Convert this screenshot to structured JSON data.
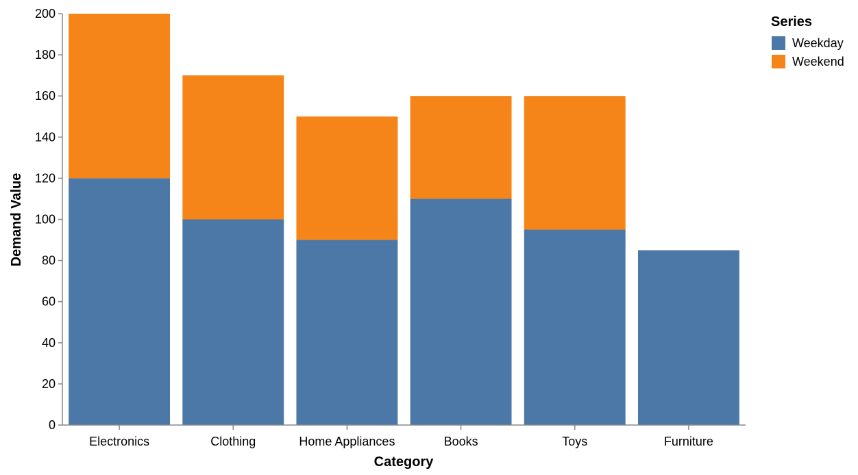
{
  "chart_data": {
    "type": "bar",
    "stacked": true,
    "categories": [
      "Electronics",
      "Clothing",
      "Home Appliances",
      "Books",
      "Toys",
      "Furniture"
    ],
    "series": [
      {
        "name": "Weekday",
        "color": "#4c78a8",
        "values": [
          120,
          100,
          90,
          110,
          95,
          85
        ]
      },
      {
        "name": "Weekend",
        "color": "#f58518",
        "values": [
          80,
          70,
          60,
          50,
          65,
          0
        ]
      }
    ],
    "xlabel": "Category",
    "ylabel": "Demand Value",
    "ylim": [
      0,
      200
    ],
    "yticks": [
      0,
      20,
      40,
      60,
      80,
      100,
      120,
      140,
      160,
      180,
      200
    ],
    "grid": false,
    "legend": {
      "title": "Series",
      "placement": "top-right"
    }
  }
}
